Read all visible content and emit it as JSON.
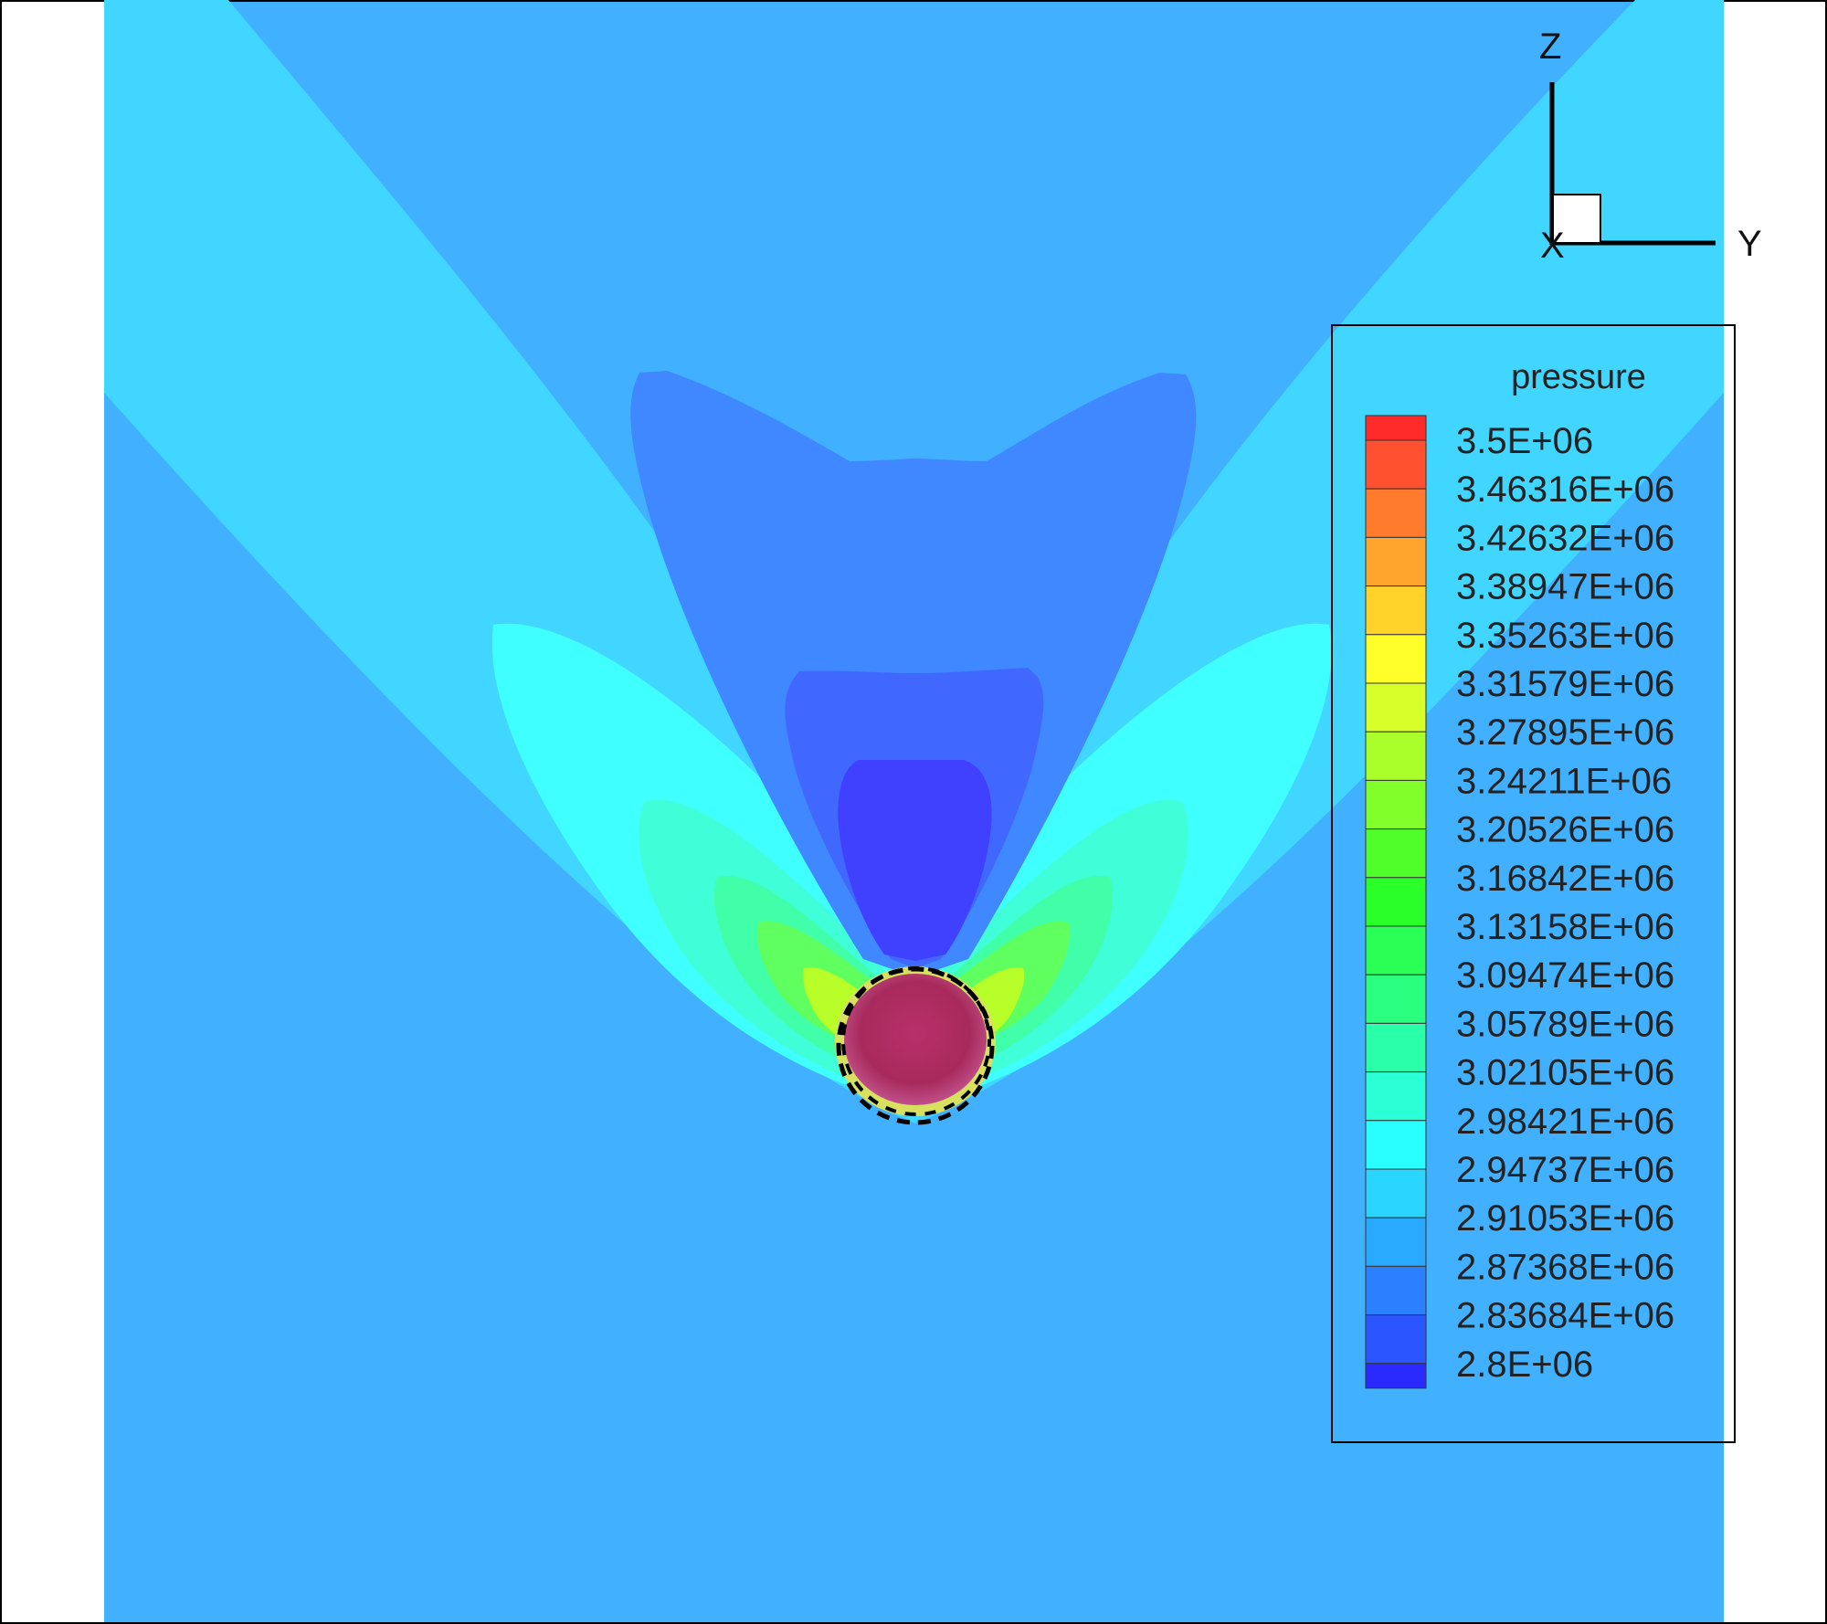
{
  "chart_data": {
    "type": "heatmap",
    "variable": "pressure",
    "legend": {
      "title": "pressure",
      "placement": "right",
      "levels": [
        {
          "label": "3.5E+06",
          "color": "#ff2a2a"
        },
        {
          "label": "3.46316E+06",
          "color": "#ff5030"
        },
        {
          "label": "3.42632E+06",
          "color": "#ff7b2e"
        },
        {
          "label": "3.38947E+06",
          "color": "#ffa52e"
        },
        {
          "label": "3.35263E+06",
          "color": "#ffd22a"
        },
        {
          "label": "3.31579E+06",
          "color": "#ffff2a"
        },
        {
          "label": "3.27895E+06",
          "color": "#d7ff2a"
        },
        {
          "label": "3.24211E+06",
          "color": "#aaff2a"
        },
        {
          "label": "3.20526E+06",
          "color": "#80ff2a"
        },
        {
          "label": "3.16842E+06",
          "color": "#50ff2a"
        },
        {
          "label": "3.13158E+06",
          "color": "#2aff2a"
        },
        {
          "label": "3.09474E+06",
          "color": "#2aff55"
        },
        {
          "label": "3.05789E+06",
          "color": "#2aff80"
        },
        {
          "label": "3.02105E+06",
          "color": "#2affaa"
        },
        {
          "label": "2.98421E+06",
          "color": "#2affd5"
        },
        {
          "label": "2.94737E+06",
          "color": "#2affff"
        },
        {
          "label": "2.91053E+06",
          "color": "#2ad5ff"
        },
        {
          "label": "2.87368E+06",
          "color": "#2aaaff"
        },
        {
          "label": "2.83684E+06",
          "color": "#2a80ff"
        },
        {
          "label": "2.8E+06",
          "color": "#2a55ff"
        }
      ],
      "bottom_color": "#2a2aff"
    },
    "axes": {
      "x": "X",
      "y": "Y",
      "z": "Z"
    },
    "field_colors": {
      "background": "#40b0ff",
      "band_light": "#40d6ff",
      "lobe": "#40ffff",
      "wake_outer": "#4088ff",
      "wake_mid": "#4068ff",
      "wake_inner": "#4040ff",
      "hot_core": "#b02a60"
    },
    "grid": false
  }
}
